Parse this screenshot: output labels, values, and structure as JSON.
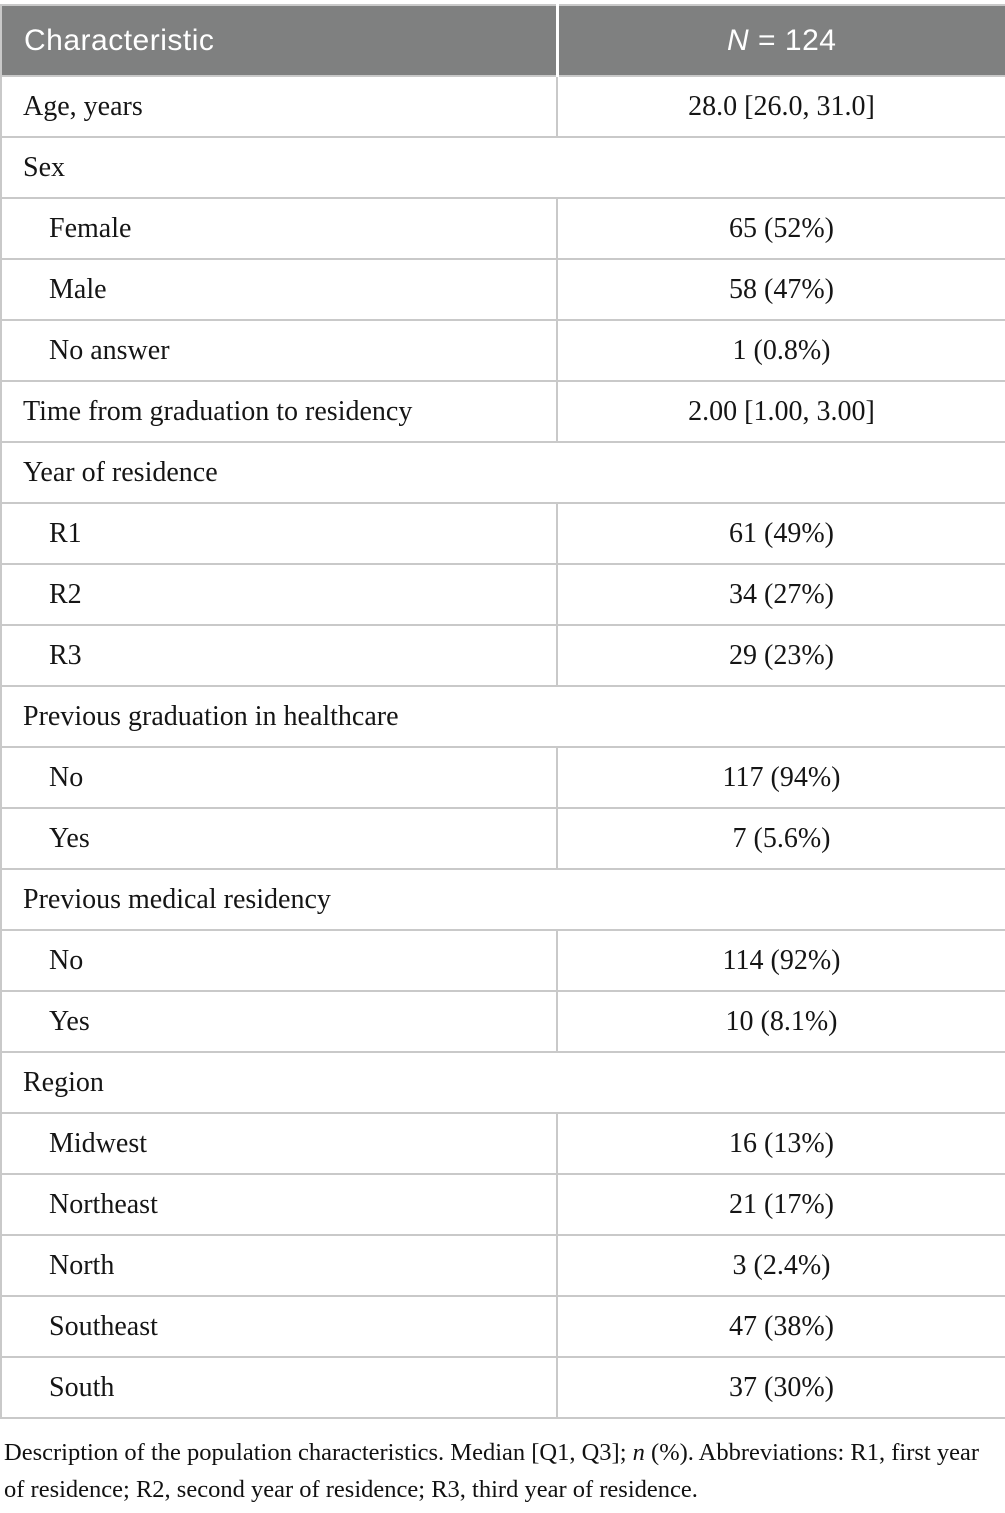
{
  "table": {
    "header": {
      "characteristic": "Characteristic",
      "n_symbol": "N",
      "n_value": " = 124"
    },
    "rows": [
      {
        "type": "data",
        "indent": false,
        "label": "Age, years",
        "value": "28.0 [26.0, 31.0]"
      },
      {
        "type": "section",
        "label": "Sex"
      },
      {
        "type": "data",
        "indent": true,
        "label": "Female",
        "value": "65 (52%)"
      },
      {
        "type": "data",
        "indent": true,
        "label": "Male",
        "value": "58 (47%)"
      },
      {
        "type": "data",
        "indent": true,
        "label": "No answer",
        "value": "1 (0.8%)"
      },
      {
        "type": "data",
        "indent": false,
        "label": "Time from graduation to residency",
        "value": "2.00 [1.00, 3.00]"
      },
      {
        "type": "section",
        "label": "Year of residence"
      },
      {
        "type": "data",
        "indent": true,
        "label": "R1",
        "value": "61 (49%)"
      },
      {
        "type": "data",
        "indent": true,
        "label": "R2",
        "value": "34 (27%)"
      },
      {
        "type": "data",
        "indent": true,
        "label": "R3",
        "value": "29 (23%)"
      },
      {
        "type": "section",
        "label": "Previous graduation in healthcare"
      },
      {
        "type": "data",
        "indent": true,
        "label": "No",
        "value": "117 (94%)"
      },
      {
        "type": "data",
        "indent": true,
        "label": "Yes",
        "value": "7 (5.6%)"
      },
      {
        "type": "section",
        "label": "Previous medical residency"
      },
      {
        "type": "data",
        "indent": true,
        "label": "No",
        "value": "114 (92%)"
      },
      {
        "type": "data",
        "indent": true,
        "label": "Yes",
        "value": "10 (8.1%)"
      },
      {
        "type": "section",
        "label": "Region"
      },
      {
        "type": "data",
        "indent": true,
        "label": "Midwest",
        "value": "16 (13%)"
      },
      {
        "type": "data",
        "indent": true,
        "label": "Northeast",
        "value": "21 (17%)"
      },
      {
        "type": "data",
        "indent": true,
        "label": "North",
        "value": "3 (2.4%)"
      },
      {
        "type": "data",
        "indent": true,
        "label": "Southeast",
        "value": "47 (38%)"
      },
      {
        "type": "data",
        "indent": true,
        "label": "South",
        "value": "37 (30%)"
      }
    ],
    "footnote": {
      "part1": "Description of the population characteristics. Median [Q1, Q3]; ",
      "italic": "n",
      "part2": " (%). Abbreviations: R1, first year of residence; R2, second year of residence; R3, third year of residence."
    }
  },
  "colors": {
    "header_bg": "#7f8080",
    "header_text": "#ffffff",
    "border": "#c9c9c9",
    "body_text": "#151515"
  }
}
